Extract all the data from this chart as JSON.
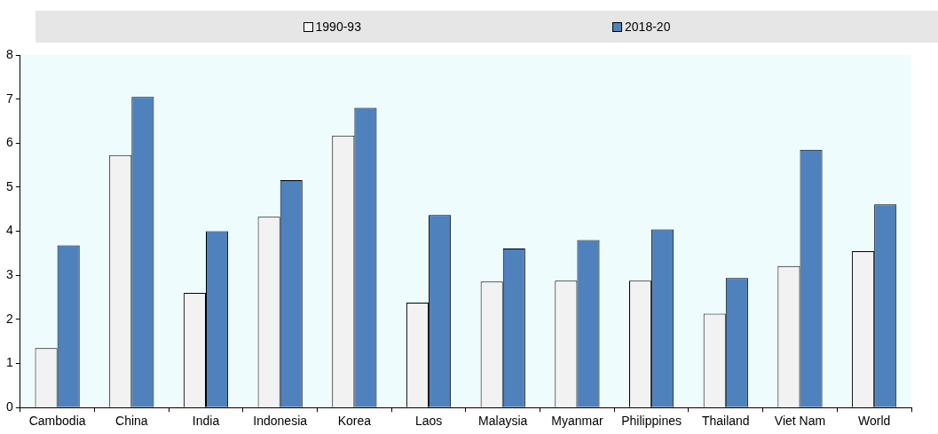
{
  "chart_data": {
    "type": "bar",
    "categories": [
      "Cambodia",
      "China",
      "India",
      "Indonesia",
      "Korea",
      "Laos",
      "Malaysia",
      "Myanmar",
      "Philippines",
      "Thailand",
      "Viet Nam",
      "World"
    ],
    "series": [
      {
        "name": "1990-93",
        "color": "#f2f2f2",
        "values": [
          1.35,
          5.73,
          2.6,
          4.33,
          6.17,
          2.38,
          2.86,
          2.88,
          2.88,
          2.13,
          3.21,
          3.55
        ]
      },
      {
        "name": "2018-20",
        "color": "#4f81bd",
        "values": [
          3.68,
          7.05,
          4.0,
          5.16,
          6.8,
          4.37,
          3.61,
          3.8,
          4.04,
          2.94,
          5.85,
          4.61
        ]
      }
    ],
    "ylim": [
      0,
      8
    ],
    "yticks": [
      0,
      1,
      2,
      3,
      4,
      5,
      6,
      7,
      8
    ],
    "grid": false,
    "legend": "top"
  }
}
